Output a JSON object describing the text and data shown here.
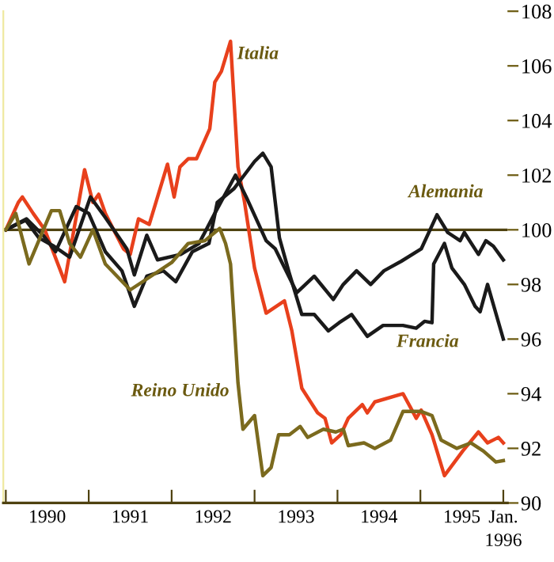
{
  "chart_data": {
    "type": "line",
    "xlim": [
      1989.97,
      1996.05
    ],
    "ylim": [
      90,
      108
    ],
    "yticks": [
      90,
      92,
      94,
      96,
      98,
      100,
      102,
      104,
      106,
      108
    ],
    "xticks": [
      {
        "value": 1990,
        "label": null
      },
      {
        "value": 1990.5,
        "label": "1990"
      },
      {
        "value": 1991,
        "label": null
      },
      {
        "value": 1991.5,
        "label": "1991"
      },
      {
        "value": 1992,
        "label": null
      },
      {
        "value": 1992.5,
        "label": "1992"
      },
      {
        "value": 1993,
        "label": null
      },
      {
        "value": 1993.5,
        "label": "1993"
      },
      {
        "value": 1994,
        "label": null
      },
      {
        "value": 1994.5,
        "label": "1994"
      },
      {
        "value": 1995,
        "label": null
      },
      {
        "value": 1995.5,
        "label": "1995"
      },
      {
        "value": 1996,
        "label": "Jan.\n1996"
      }
    ],
    "ref_lines": [
      {
        "axis": "y",
        "value": 100,
        "label": null,
        "color": "#4f4210"
      }
    ],
    "grid": false,
    "legend": false,
    "marker": "none",
    "line_style": "solid",
    "series": [
      {
        "name": "Italia",
        "color": "#e8401c",
        "x": [
          1990.0,
          1990.15,
          1990.2,
          1990.33,
          1990.47,
          1990.71,
          1990.95,
          1991.05,
          1991.12,
          1991.2,
          1991.3,
          1991.42,
          1991.5,
          1991.6,
          1991.73,
          1991.95,
          1992.03,
          1992.1,
          1992.2,
          1992.3,
          1992.46,
          1992.52,
          1992.6,
          1992.71,
          1992.8,
          1992.88,
          1993.0,
          1993.14,
          1993.36,
          1993.45,
          1993.57,
          1993.76,
          1993.85,
          1993.93,
          1994.04,
          1994.13,
          1994.3,
          1994.36,
          1994.45,
          1994.79,
          1994.88,
          1994.95,
          1995.01,
          1995.14,
          1995.29,
          1995.51,
          1995.7,
          1995.81,
          1995.94,
          1996.0
        ],
        "values": [
          100.0,
          101.0,
          101.2,
          100.6,
          100.0,
          98.1,
          102.2,
          101.0,
          101.3,
          100.6,
          100.0,
          99.3,
          99.1,
          100.4,
          100.2,
          102.4,
          101.2,
          102.3,
          102.6,
          102.6,
          103.7,
          105.4,
          105.8,
          106.9,
          102.3,
          101.0,
          98.6,
          96.95,
          97.4,
          96.3,
          94.2,
          93.3,
          93.1,
          92.2,
          92.5,
          93.1,
          93.6,
          93.3,
          93.7,
          94.0,
          93.5,
          93.1,
          93.4,
          92.5,
          91.0,
          91.9,
          92.6,
          92.2,
          92.4,
          92.2
        ]
      },
      {
        "name": "Alemania",
        "color": "#1a1a1a",
        "x": [
          1990.0,
          1990.24,
          1990.4,
          1990.58,
          1990.77,
          1991.02,
          1991.2,
          1991.46,
          1991.55,
          1991.7,
          1991.83,
          1992.11,
          1992.33,
          1992.52,
          1992.77,
          1992.9,
          1993.14,
          1993.25,
          1993.51,
          1993.72,
          1993.95,
          1994.07,
          1994.23,
          1994.4,
          1994.56,
          1994.77,
          1995.01,
          1995.2,
          1995.33,
          1995.48,
          1995.53,
          1995.7,
          1995.79,
          1995.88,
          1996.0
        ],
        "values": [
          100.0,
          100.35,
          99.7,
          99.4,
          99.0,
          101.2,
          100.45,
          99.3,
          98.35,
          99.8,
          98.9,
          99.1,
          99.5,
          100.6,
          102.0,
          101.2,
          99.6,
          99.3,
          97.7,
          98.3,
          97.45,
          98.0,
          98.5,
          98.0,
          98.5,
          98.85,
          99.3,
          100.55,
          99.9,
          99.6,
          99.9,
          99.1,
          99.6,
          99.4,
          98.9
        ]
      },
      {
        "name": "Francia",
        "color": "#1a1a1a",
        "x": [
          1990.0,
          1990.25,
          1990.45,
          1990.6,
          1990.85,
          1991.0,
          1991.2,
          1991.4,
          1991.55,
          1991.7,
          1991.9,
          1992.05,
          1992.25,
          1992.45,
          1992.55,
          1992.75,
          1992.85,
          1993.0,
          1993.1,
          1993.2,
          1993.3,
          1993.42,
          1993.57,
          1993.72,
          1993.89,
          1994.02,
          1994.17,
          1994.36,
          1994.55,
          1994.79,
          1994.95,
          1995.05,
          1995.14,
          1995.16,
          1995.29,
          1995.38,
          1995.53,
          1995.66,
          1995.72,
          1995.81,
          1996.0
        ],
        "values": [
          100.0,
          100.4,
          99.8,
          99.2,
          100.85,
          100.6,
          99.2,
          98.5,
          97.2,
          98.3,
          98.5,
          98.1,
          99.2,
          99.5,
          101.0,
          101.5,
          101.9,
          102.5,
          102.8,
          102.3,
          99.7,
          98.4,
          96.9,
          96.9,
          96.3,
          96.6,
          96.9,
          96.1,
          96.5,
          96.5,
          96.4,
          96.65,
          96.6,
          98.75,
          99.5,
          98.6,
          98.0,
          97.2,
          97.0,
          98.0,
          96.0
        ]
      },
      {
        "name": "Reino Unido",
        "color": "#7b6a1e",
        "x": [
          1990.0,
          1990.12,
          1990.28,
          1990.55,
          1990.65,
          1990.77,
          1990.9,
          1991.05,
          1991.2,
          1991.5,
          1991.75,
          1992.0,
          1992.2,
          1992.4,
          1992.58,
          1992.65,
          1992.71,
          1992.8,
          1992.86,
          1993.0,
          1993.1,
          1993.2,
          1993.29,
          1993.42,
          1993.55,
          1993.64,
          1993.83,
          1993.98,
          1994.07,
          1994.13,
          1994.32,
          1994.45,
          1994.64,
          1994.79,
          1995.01,
          1995.14,
          1995.25,
          1995.44,
          1995.61,
          1995.76,
          1995.91,
          1996.0
        ],
        "values": [
          100.0,
          100.6,
          98.75,
          100.7,
          100.7,
          99.5,
          99.0,
          100.0,
          98.75,
          97.8,
          98.3,
          98.8,
          99.5,
          99.6,
          100.05,
          99.5,
          98.75,
          94.4,
          92.7,
          93.2,
          91.0,
          91.3,
          92.5,
          92.5,
          92.8,
          92.4,
          92.7,
          92.6,
          92.7,
          92.1,
          92.2,
          92.0,
          92.3,
          93.35,
          93.35,
          93.2,
          92.3,
          92.0,
          92.2,
          91.9,
          91.5,
          91.55
        ]
      }
    ]
  }
}
